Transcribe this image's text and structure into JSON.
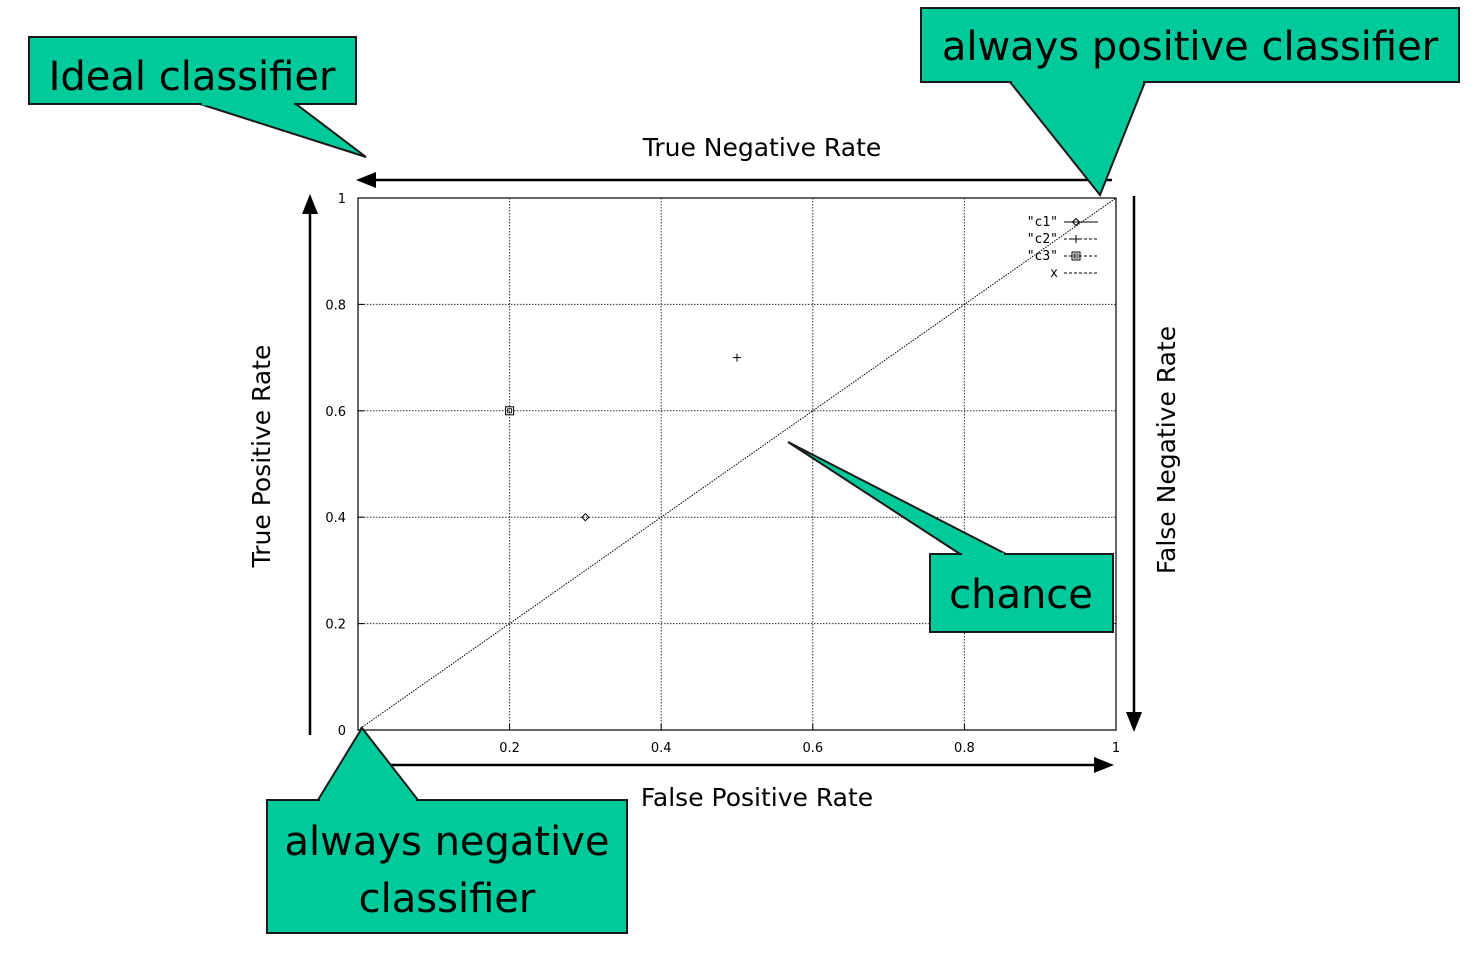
{
  "chart_data": {
    "type": "scatter",
    "xlabel": "False Positive Rate",
    "ylabel": "True Positive Rate",
    "top_axis_label": "True Negative Rate",
    "right_axis_label": "False  Negative Rate",
    "xlim": [
      0,
      1
    ],
    "ylim": [
      0,
      1
    ],
    "x_ticks": [
      0.2,
      0.4,
      0.6,
      0.8,
      1
    ],
    "x_tick_labels": [
      "0.2",
      "0.4",
      "0.6",
      "0.8",
      "1"
    ],
    "y_ticks": [
      0,
      0.2,
      0.4,
      0.6,
      0.8,
      1
    ],
    "y_tick_labels": [
      "0",
      "0.2",
      "0.4",
      "0.6",
      "0.8",
      "1"
    ],
    "grid": true,
    "legend_position": "top-right",
    "series": [
      {
        "name": "\"c1\"",
        "marker": "diamond",
        "points": [
          [
            0.3,
            0.4
          ]
        ]
      },
      {
        "name": "\"c2\"",
        "marker": "plus",
        "points": [
          [
            0.5,
            0.7
          ]
        ]
      },
      {
        "name": "\"c3\"",
        "marker": "square",
        "points": [
          [
            0.2,
            0.6
          ]
        ]
      },
      {
        "name": "x",
        "marker": "none",
        "line": "dotted",
        "points": [
          [
            0,
            0
          ],
          [
            1,
            1
          ]
        ]
      }
    ]
  },
  "callouts": {
    "ideal": "Ideal classifier",
    "always_positive": "always positive classifier",
    "chance": "chance",
    "always_negative_line1": "always negative",
    "always_negative_line2": "classifier"
  },
  "colors": {
    "callout_fill": "#00c99a",
    "callout_border": "#1a1a1a",
    "axis": "#000000",
    "grid": "#333333"
  }
}
